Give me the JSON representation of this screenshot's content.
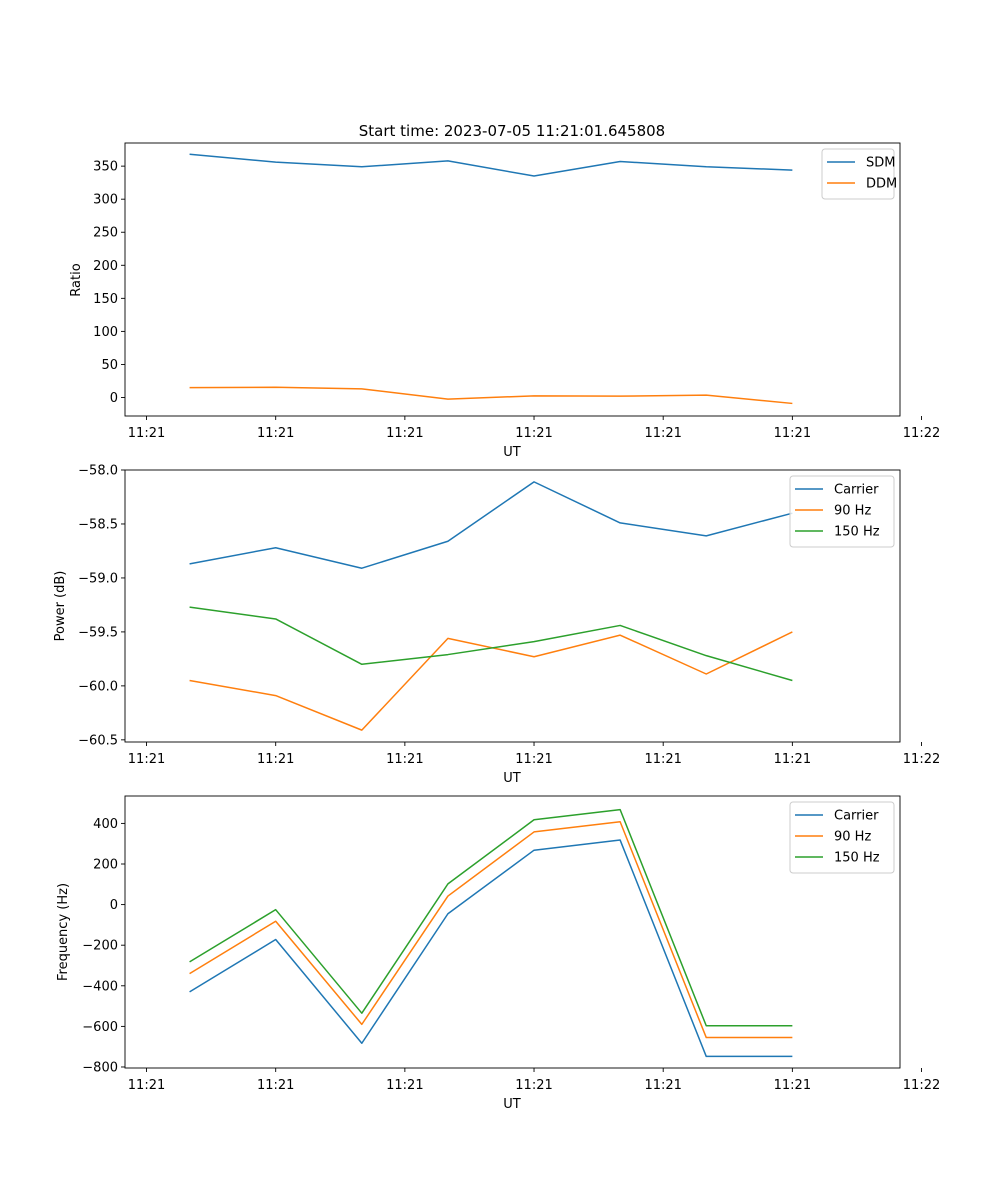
{
  "chart_data": [
    {
      "type": "line",
      "title": "Start time: 2023-07-05 11:21:01.645808",
      "xlabel": "UT",
      "ylabel": "Ratio",
      "xlim": [
        0,
        9
      ],
      "ylim": [
        -28,
        385
      ],
      "x": [
        0.75,
        1.75,
        2.75,
        3.75,
        4.75,
        5.75,
        6.75,
        7.75
      ],
      "xticks": [
        0.25,
        1.75,
        3.25,
        4.75,
        6.25,
        7.75,
        9.25
      ],
      "xticklabels": [
        "11:21",
        "11:21",
        "11:21",
        "11:21",
        "11:21",
        "11:21",
        "11:22"
      ],
      "yticks": [
        0,
        50,
        100,
        150,
        200,
        250,
        300,
        350
      ],
      "yticklabels": [
        "0",
        "50",
        "100",
        "150",
        "200",
        "250",
        "300",
        "350"
      ],
      "legend_position": "top-right",
      "series": [
        {
          "name": "SDM",
          "color": "#1f77b4",
          "values": [
            368,
            356,
            349,
            358,
            335,
            357,
            349,
            344
          ]
        },
        {
          "name": "DDM",
          "color": "#ff7f0e",
          "values": [
            15,
            15.5,
            13,
            -2.5,
            2.5,
            2,
            3.5,
            -9
          ]
        }
      ]
    },
    {
      "type": "line",
      "title": "",
      "xlabel": "UT",
      "ylabel": "Power (dB)",
      "xlim": [
        0,
        9
      ],
      "ylim": [
        -60.52,
        -58.0
      ],
      "x": [
        0.75,
        1.75,
        2.75,
        3.75,
        4.75,
        5.75,
        6.75,
        7.75
      ],
      "xticks": [
        0.25,
        1.75,
        3.25,
        4.75,
        6.25,
        7.75,
        9.25
      ],
      "xticklabels": [
        "11:21",
        "11:21",
        "11:21",
        "11:21",
        "11:21",
        "11:21",
        "11:22"
      ],
      "yticks": [
        -60.5,
        -60.0,
        -59.5,
        -59.0,
        -58.5,
        -58.0
      ],
      "yticklabels": [
        "−60.5",
        "−60.0",
        "−59.5",
        "−59.0",
        "−58.5",
        "−58.0"
      ],
      "legend_position": "top-right",
      "series": [
        {
          "name": "Carrier",
          "color": "#1f77b4",
          "values": [
            -58.87,
            -58.72,
            -58.91,
            -58.66,
            -58.11,
            -58.49,
            -58.61,
            -58.4
          ]
        },
        {
          "name": "90 Hz",
          "color": "#ff7f0e",
          "values": [
            -59.95,
            -60.09,
            -60.41,
            -59.56,
            -59.73,
            -59.53,
            -59.89,
            -59.5
          ]
        },
        {
          "name": "150 Hz",
          "color": "#2ca02c",
          "values": [
            -59.27,
            -59.38,
            -59.8,
            -59.71,
            -59.59,
            -59.44,
            -59.72,
            -59.95
          ]
        }
      ]
    },
    {
      "type": "line",
      "title": "",
      "xlabel": "UT",
      "ylabel": "Frequency (Hz)",
      "xlim": [
        0,
        9
      ],
      "ylim": [
        -805,
        535
      ],
      "x": [
        0.75,
        1.75,
        2.75,
        3.75,
        4.75,
        5.75,
        6.75,
        7.75
      ],
      "xticks": [
        0.25,
        1.75,
        3.25,
        4.75,
        6.25,
        7.75,
        9.25
      ],
      "xticklabels": [
        "11:21",
        "11:21",
        "11:21",
        "11:21",
        "11:21",
        "11:21",
        "11:22"
      ],
      "yticks": [
        -800,
        -600,
        -400,
        -200,
        0,
        200,
        400
      ],
      "yticklabels": [
        "−800",
        "−600",
        "−400",
        "−200",
        "0",
        "200",
        "400"
      ],
      "legend_position": "top-right",
      "series": [
        {
          "name": "Carrier",
          "color": "#1f77b4",
          "values": [
            -430,
            -172,
            -683,
            -45,
            268,
            318,
            -748,
            -748
          ]
        },
        {
          "name": "90 Hz",
          "color": "#ff7f0e",
          "values": [
            -340,
            -82,
            -590,
            42,
            358,
            408,
            -655,
            -655
          ]
        },
        {
          "name": "150 Hz",
          "color": "#2ca02c",
          "values": [
            -282,
            -25,
            -535,
            102,
            418,
            468,
            -597,
            -597
          ]
        }
      ]
    }
  ]
}
